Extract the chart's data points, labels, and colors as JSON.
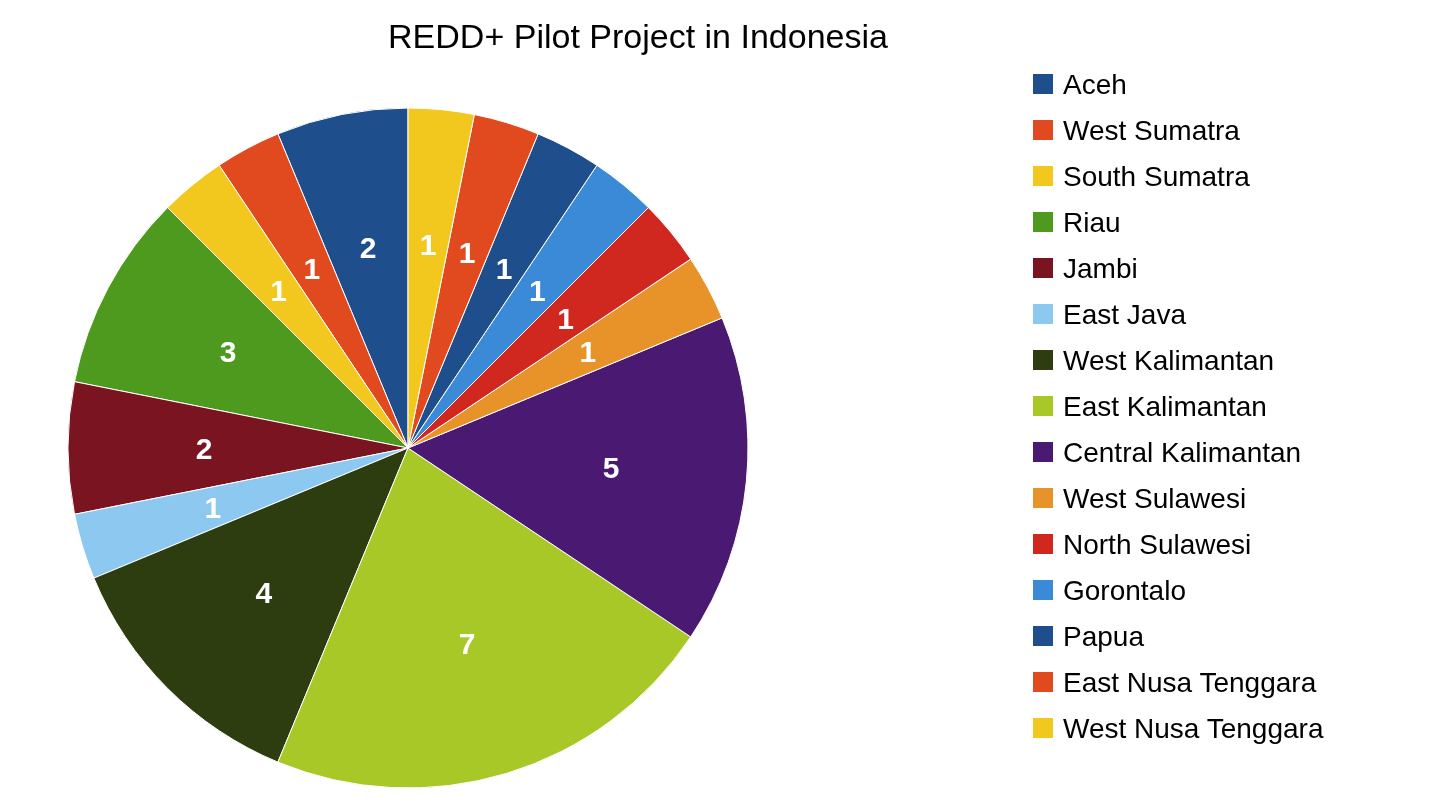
{
  "chart_data": {
    "type": "pie",
    "title": "REDD+ Pilot Project in Indonesia",
    "categories": [
      "Aceh",
      "West Sumatra",
      "South Sumatra",
      "Riau",
      "Jambi",
      "East Java",
      "West Kalimantan",
      "East Kalimantan",
      "Central Kalimantan",
      "West Sulawesi",
      "North Sulawesi",
      "Gorontalo",
      "Papua",
      "East Nusa Tenggara",
      "West Nusa Tenggara"
    ],
    "values": [
      2,
      1,
      1,
      3,
      2,
      1,
      4,
      7,
      5,
      1,
      1,
      1,
      1,
      1,
      1
    ],
    "colors": [
      "#1f4e8c",
      "#e04a1e",
      "#f2c81e",
      "#4e9a1e",
      "#7a1420",
      "#8cc8f0",
      "#2e3d10",
      "#a8c828",
      "#4a1a72",
      "#e8922a",
      "#d0281e",
      "#3a8ad8",
      "#1f4e8c",
      "#e04a1e",
      "#f2c81e"
    ],
    "data_labels": true,
    "legend": "right"
  }
}
